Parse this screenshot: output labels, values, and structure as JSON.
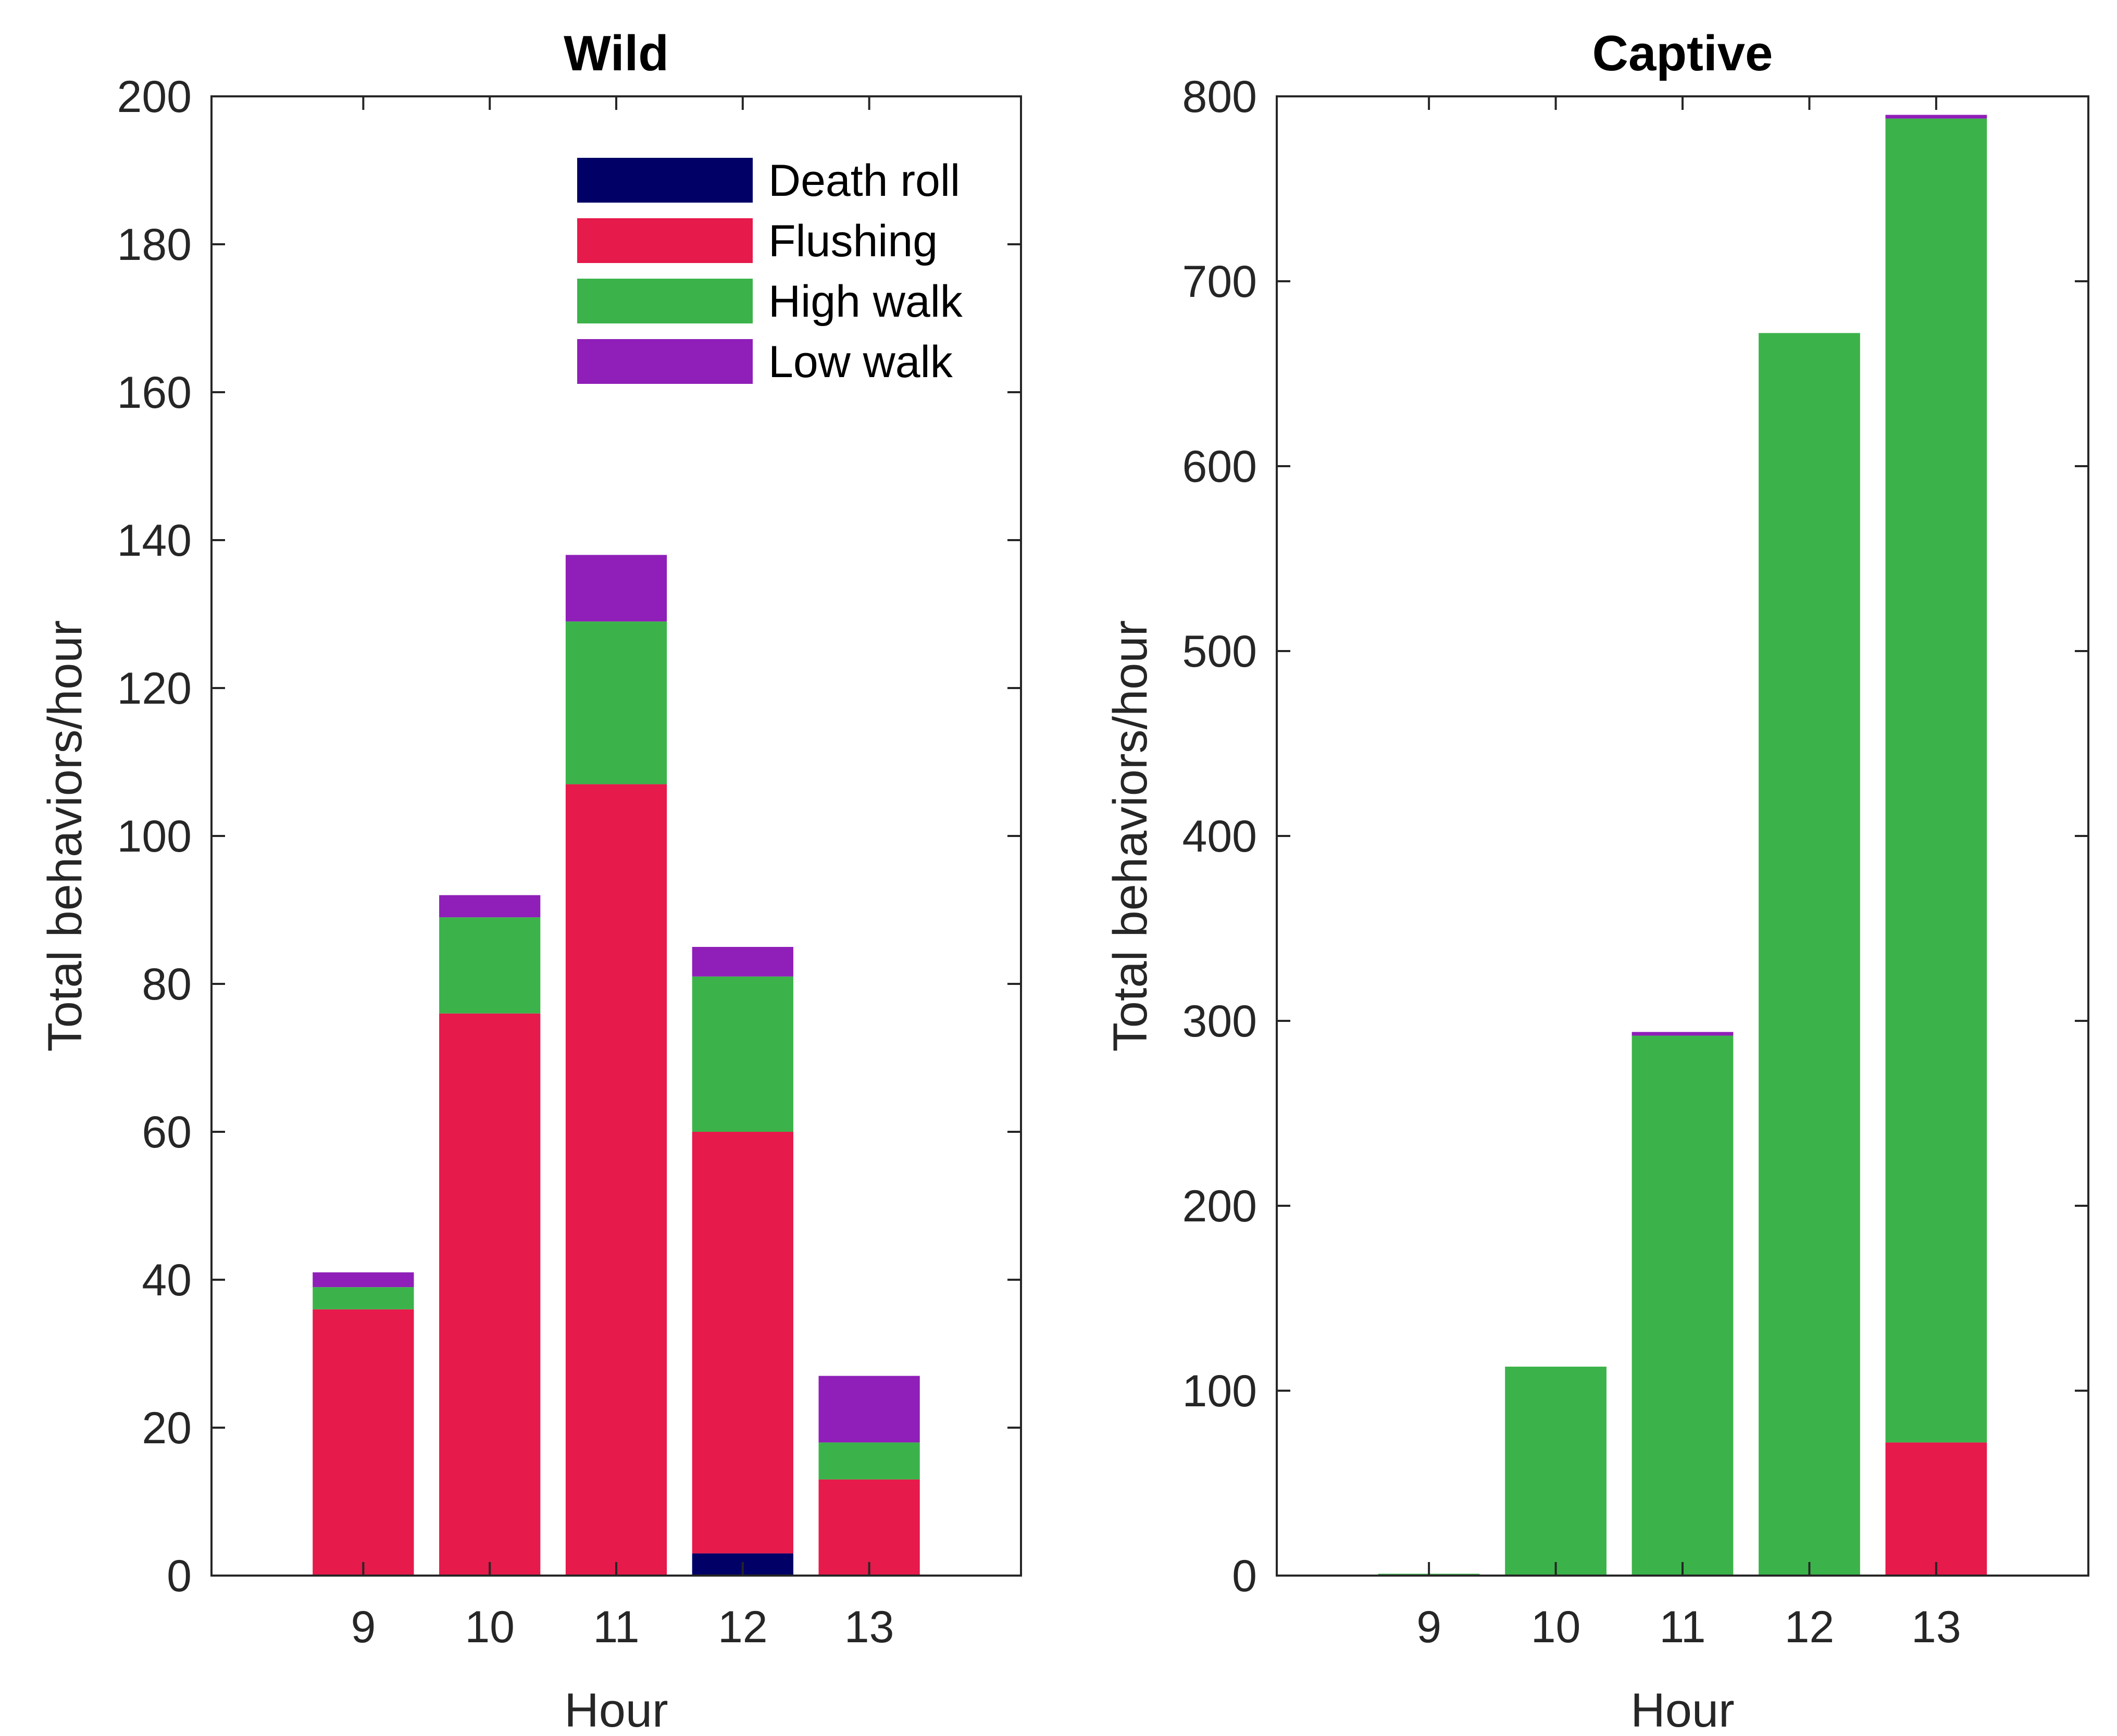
{
  "chart_data": [
    {
      "type": "bar",
      "stacked": true,
      "title": "Wild",
      "xlabel": "Hour",
      "ylabel": "Total behaviors/hour",
      "categories": [
        "9",
        "10",
        "11",
        "12",
        "13"
      ],
      "xlim": [
        7.8,
        14.2
      ],
      "ylim": [
        0,
        200
      ],
      "yticks": [
        0,
        20,
        40,
        60,
        80,
        100,
        120,
        140,
        160,
        180,
        200
      ],
      "grid": false,
      "legend_position": "top-right",
      "series": [
        {
          "name": "Death roll",
          "color": "#000066",
          "values": [
            0,
            0,
            0,
            3,
            0
          ]
        },
        {
          "name": "Flushing",
          "color": "#e61a4b",
          "values": [
            36,
            76,
            107,
            57,
            13
          ]
        },
        {
          "name": "High walk",
          "color": "#3bb34a",
          "values": [
            3,
            13,
            22,
            21,
            5
          ]
        },
        {
          "name": "Low walk",
          "color": "#8f1fb8",
          "values": [
            2,
            3,
            9,
            4,
            9
          ]
        }
      ]
    },
    {
      "type": "bar",
      "stacked": true,
      "title": "Captive",
      "xlabel": "Hour",
      "ylabel": "Total behaviors/hour",
      "categories": [
        "9",
        "10",
        "11",
        "12",
        "13"
      ],
      "xlim": [
        7.8,
        14.2
      ],
      "ylim": [
        0,
        800
      ],
      "yticks": [
        0,
        100,
        200,
        300,
        400,
        500,
        600,
        700,
        800
      ],
      "grid": false,
      "series": [
        {
          "name": "Death roll",
          "color": "#000066",
          "values": [
            0,
            0,
            0,
            0,
            0
          ]
        },
        {
          "name": "Flushing",
          "color": "#e61a4b",
          "values": [
            0,
            0,
            0,
            0,
            72
          ]
        },
        {
          "name": "High walk",
          "color": "#3bb34a",
          "values": [
            1,
            113,
            292,
            672,
            716
          ]
        },
        {
          "name": "Low walk",
          "color": "#8f1fb8",
          "values": [
            0,
            0,
            2,
            0,
            2
          ]
        }
      ]
    }
  ]
}
